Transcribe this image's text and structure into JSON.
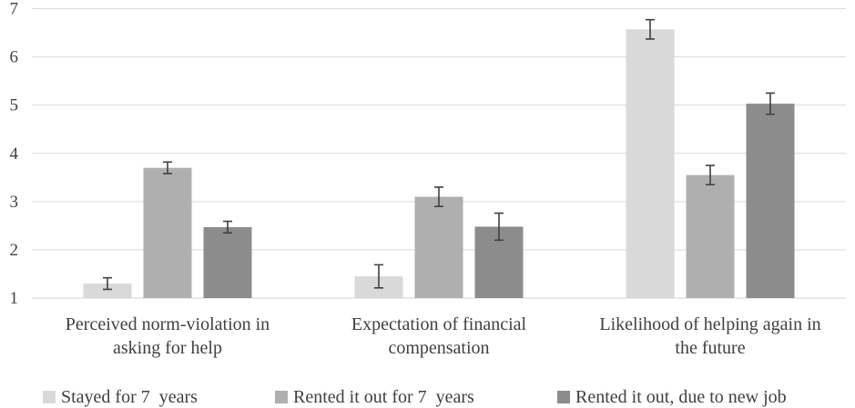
{
  "chart_data": {
    "type": "bar",
    "title": "",
    "xlabel": "",
    "ylabel": "",
    "ylim": [
      1,
      7
    ],
    "yticks": [
      1,
      2,
      3,
      4,
      5,
      6,
      7
    ],
    "grid": true,
    "legend_position": "bottom",
    "categories": [
      [
        "Perceived norm-violation in",
        "asking for help"
      ],
      [
        "Expectation of financial",
        "compensation"
      ],
      [
        "Likelihood of helping again in",
        "the future"
      ]
    ],
    "series": [
      {
        "name": "Stayed for 7  years",
        "color": "#d9d9d9",
        "values": [
          1.3,
          1.45,
          6.57
        ],
        "errors": [
          0.12,
          0.24,
          0.2
        ]
      },
      {
        "name": "Rented it out for 7  years",
        "color": "#afafaf",
        "values": [
          3.7,
          3.1,
          3.55
        ],
        "errors": [
          0.12,
          0.2,
          0.2
        ]
      },
      {
        "name": "Rented it out, due to new job",
        "color": "#8c8c8c",
        "values": [
          2.47,
          2.48,
          5.03
        ],
        "errors": [
          0.12,
          0.28,
          0.22
        ]
      }
    ]
  }
}
